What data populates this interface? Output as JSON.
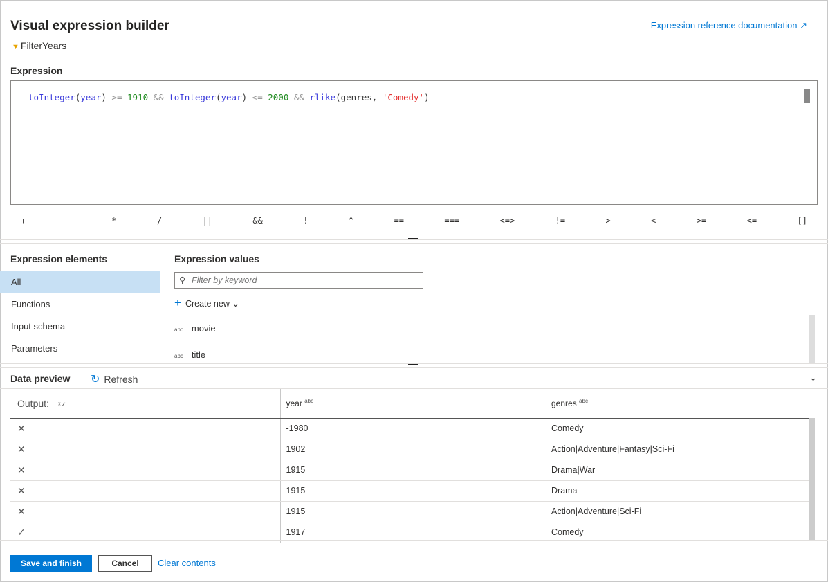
{
  "header": {
    "title": "Visual expression builder",
    "subtitle": "FilterYears",
    "doc_link": "Expression reference documentation",
    "doc_icon": "external-link-icon"
  },
  "expression": {
    "label": "Expression",
    "tokens": [
      [
        "f",
        "toInteger"
      ],
      [
        "p",
        "("
      ],
      [
        "f",
        "year"
      ],
      [
        "p",
        ")"
      ],
      [
        "o",
        " >= "
      ],
      [
        "n",
        "1910"
      ],
      [
        "o",
        " && "
      ],
      [
        "f",
        "toInteger"
      ],
      [
        "p",
        "("
      ],
      [
        "f",
        "year"
      ],
      [
        "p",
        ")"
      ],
      [
        "o",
        " <= "
      ],
      [
        "n",
        "2000"
      ],
      [
        "o",
        " && "
      ],
      [
        "f",
        "rlike"
      ],
      [
        "p",
        "(genres, "
      ],
      [
        "s",
        "'Comedy'"
      ],
      [
        "p",
        ")"
      ]
    ]
  },
  "operators": [
    "+",
    "-",
    "*",
    "/",
    "||",
    "&&",
    "!",
    "^",
    "==",
    "===",
    "<=>",
    "!=",
    ">",
    "<",
    ">=",
    "<=",
    "[]"
  ],
  "elements": {
    "label": "Expression elements",
    "items": [
      "All",
      "Functions",
      "Input schema",
      "Parameters"
    ],
    "selected": "All"
  },
  "values": {
    "label": "Expression values",
    "filter_placeholder": "Filter by keyword",
    "create_new": "Create new",
    "items": [
      {
        "type": "abc",
        "name": "movie"
      },
      {
        "type": "abc",
        "name": "title"
      }
    ]
  },
  "preview": {
    "label": "Data preview",
    "refresh": "Refresh",
    "columns": [
      {
        "name": "Output:",
        "icon": "x-check-icon"
      },
      {
        "name": "year",
        "type": "abc"
      },
      {
        "name": "genres",
        "type": "abc"
      }
    ],
    "rows": [
      [
        "false",
        "-1980",
        "Comedy"
      ],
      [
        "false",
        "1902",
        "Action|Adventure|Fantasy|Sci-Fi"
      ],
      [
        "false",
        "1915",
        "Drama|War"
      ],
      [
        "false",
        "1915",
        "Drama"
      ],
      [
        "false",
        "1915",
        "Action|Adventure|Sci-Fi"
      ],
      [
        "true",
        "1917",
        "Comedy"
      ]
    ]
  },
  "footer": {
    "save": "Save and finish",
    "cancel": "Cancel",
    "clear": "Clear contents"
  }
}
